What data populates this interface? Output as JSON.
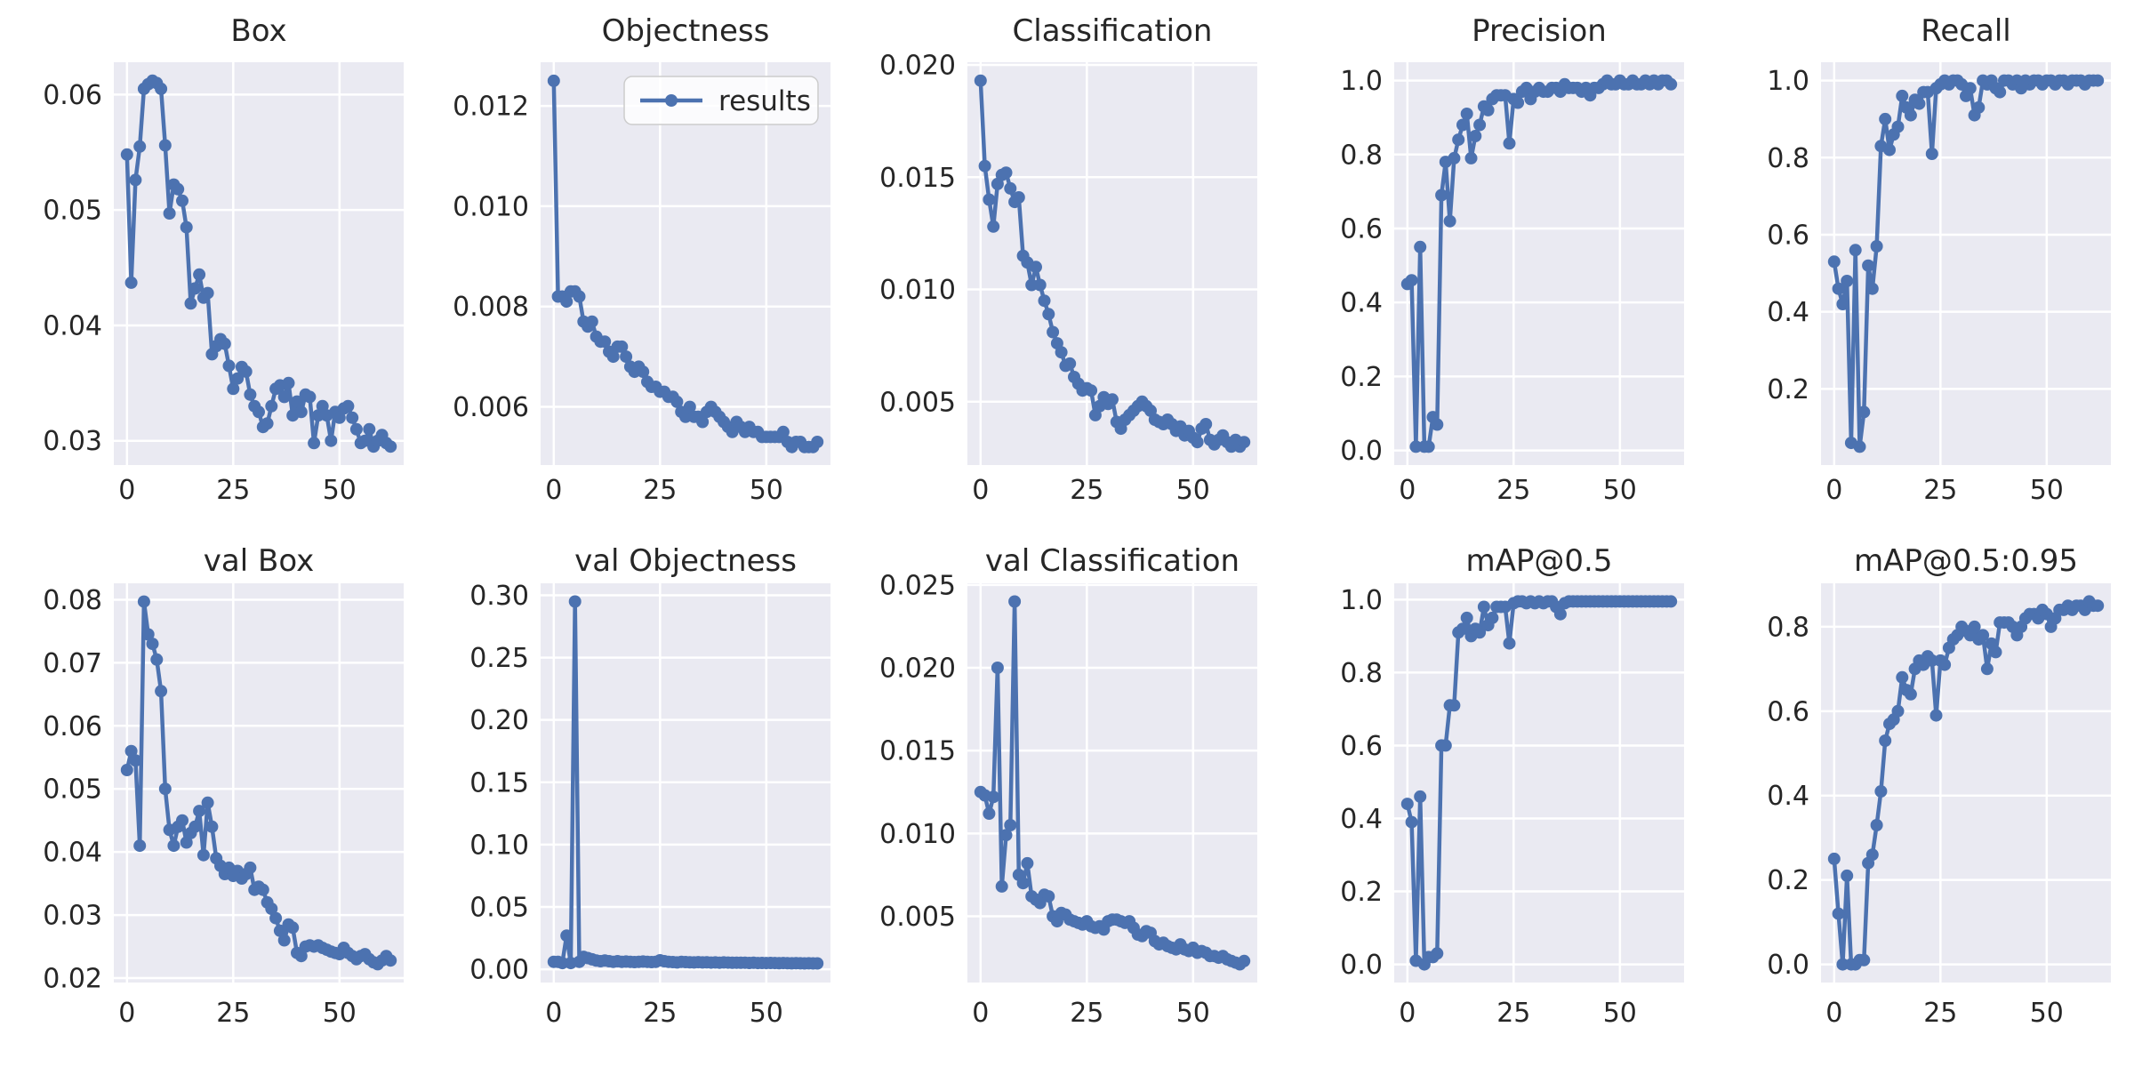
{
  "figure": {
    "description_title": "training results grid",
    "legend_label": "results"
  },
  "colors": {
    "line": "#4c72b0",
    "axes_background": "#eaeaf2",
    "gridline": "#ffffff",
    "text": "#262626",
    "legend_background": "rgba(255,255,255,0.8)",
    "legend_border": "#cccccc",
    "figure_background": "#ffffff"
  },
  "axes_shared": {
    "xlim": [
      -3.1,
      65.1
    ],
    "xticks": [
      0,
      25,
      50
    ],
    "xtick_labels": [
      "0",
      "25",
      "50"
    ],
    "x_start": 0,
    "x_step": 1,
    "grid": true,
    "legend_position": "upper right"
  },
  "chart_data": [
    {
      "type": "line",
      "title": "Box",
      "series_name": "results",
      "show_legend": false,
      "ylim": [
        0.0279,
        0.0628
      ],
      "yticks": [
        0.03,
        0.04,
        0.05,
        0.06
      ],
      "ytick_labels": [
        "0.03",
        "0.04",
        "0.05",
        "0.06"
      ],
      "values": [
        0.0548,
        0.0437,
        0.0526,
        0.0555,
        0.0605,
        0.0609,
        0.0612,
        0.061,
        0.0605,
        0.0556,
        0.0497,
        0.0522,
        0.0518,
        0.0508,
        0.0485,
        0.0419,
        0.0432,
        0.0444,
        0.0424,
        0.0428,
        0.0375,
        0.0382,
        0.0388,
        0.0384,
        0.0365,
        0.0345,
        0.0354,
        0.0364,
        0.036,
        0.034,
        0.033,
        0.0325,
        0.0312,
        0.0315,
        0.033,
        0.0345,
        0.0348,
        0.0338,
        0.035,
        0.0322,
        0.0334,
        0.0325,
        0.034,
        0.0338,
        0.0298,
        0.0322,
        0.033,
        0.0322,
        0.03,
        0.0325,
        0.032,
        0.0328,
        0.033,
        0.032,
        0.031,
        0.0298,
        0.03,
        0.031,
        0.0295,
        0.03,
        0.0305,
        0.0298,
        0.0295
      ]
    },
    {
      "type": "line",
      "title": "Objectness",
      "series_name": "results",
      "show_legend": true,
      "ylim": [
        0.00484,
        0.01287
      ],
      "yticks": [
        0.006,
        0.008,
        0.01,
        0.012
      ],
      "ytick_labels": [
        "0.006",
        "0.008",
        "0.010",
        "0.012"
      ],
      "values": [
        0.0125,
        0.0082,
        0.0082,
        0.0081,
        0.0083,
        0.0083,
        0.0082,
        0.0077,
        0.0076,
        0.0077,
        0.0074,
        0.0073,
        0.0073,
        0.0071,
        0.007,
        0.0072,
        0.0072,
        0.007,
        0.0068,
        0.0067,
        0.0068,
        0.0067,
        0.0065,
        0.0064,
        0.0064,
        0.0063,
        0.0063,
        0.0062,
        0.0062,
        0.0061,
        0.0059,
        0.0058,
        0.006,
        0.0058,
        0.0058,
        0.0057,
        0.0059,
        0.006,
        0.0059,
        0.0058,
        0.0057,
        0.0056,
        0.0055,
        0.0057,
        0.0056,
        0.0055,
        0.0056,
        0.0055,
        0.0055,
        0.0054,
        0.0054,
        0.0054,
        0.0054,
        0.0054,
        0.0055,
        0.0053,
        0.0052,
        0.0053,
        0.0053,
        0.0052,
        0.0052,
        0.0052,
        0.0053
      ]
    },
    {
      "type": "line",
      "title": "Classification",
      "series_name": "results",
      "show_legend": false,
      "ylim": [
        0.00218,
        0.02012
      ],
      "yticks": [
        0.005,
        0.01,
        0.015,
        0.02
      ],
      "ytick_labels": [
        "0.005",
        "0.010",
        "0.015",
        "0.020"
      ],
      "values": [
        0.0193,
        0.0155,
        0.014,
        0.0128,
        0.0147,
        0.0151,
        0.0152,
        0.0145,
        0.0139,
        0.0141,
        0.0115,
        0.0112,
        0.0102,
        0.011,
        0.0102,
        0.0095,
        0.0089,
        0.0081,
        0.0076,
        0.0072,
        0.0066,
        0.0067,
        0.0061,
        0.0058,
        0.0055,
        0.0056,
        0.0055,
        0.0044,
        0.0048,
        0.0052,
        0.0049,
        0.0051,
        0.0041,
        0.0038,
        0.0042,
        0.0044,
        0.0046,
        0.0048,
        0.005,
        0.0048,
        0.0046,
        0.0042,
        0.0041,
        0.004,
        0.0042,
        0.004,
        0.0037,
        0.0039,
        0.0035,
        0.0037,
        0.0034,
        0.0032,
        0.0038,
        0.004,
        0.0033,
        0.0031,
        0.0033,
        0.0035,
        0.0032,
        0.003,
        0.0033,
        0.003,
        0.0032
      ]
    },
    {
      "type": "line",
      "title": "Precision",
      "series_name": "results",
      "show_legend": false,
      "ylim": [
        -0.0395,
        1.0495
      ],
      "yticks": [
        0.0,
        0.2,
        0.4,
        0.6,
        0.8,
        1.0
      ],
      "ytick_labels": [
        "0.0",
        "0.2",
        "0.4",
        "0.6",
        "0.8",
        "1.0"
      ],
      "values": [
        0.45,
        0.46,
        0.01,
        0.55,
        0.01,
        0.01,
        0.09,
        0.07,
        0.69,
        0.78,
        0.62,
        0.79,
        0.84,
        0.88,
        0.91,
        0.79,
        0.85,
        0.88,
        0.93,
        0.92,
        0.95,
        0.96,
        0.96,
        0.96,
        0.83,
        0.95,
        0.94,
        0.97,
        0.98,
        0.95,
        0.97,
        0.98,
        0.97,
        0.97,
        0.98,
        0.98,
        0.97,
        0.99,
        0.98,
        0.98,
        0.98,
        0.97,
        0.98,
        0.96,
        0.98,
        0.98,
        0.99,
        1.0,
        0.99,
        0.99,
        1.0,
        0.99,
        0.99,
        1.0,
        0.99,
        0.99,
        1.0,
        0.99,
        1.0,
        0.99,
        1.0,
        1.0,
        0.99
      ]
    },
    {
      "type": "line",
      "title": "Recall",
      "series_name": "results",
      "show_legend": false,
      "ylim": [
        0.0025,
        1.0475
      ],
      "yticks": [
        0.2,
        0.4,
        0.6,
        0.8,
        1.0
      ],
      "ytick_labels": [
        "0.2",
        "0.4",
        "0.6",
        "0.8",
        "1.0"
      ],
      "values": [
        0.53,
        0.46,
        0.42,
        0.48,
        0.06,
        0.56,
        0.05,
        0.14,
        0.52,
        0.46,
        0.57,
        0.83,
        0.9,
        0.82,
        0.86,
        0.88,
        0.96,
        0.93,
        0.91,
        0.95,
        0.94,
        0.97,
        0.97,
        0.81,
        0.98,
        0.99,
        1.0,
        0.99,
        1.0,
        1.0,
        0.99,
        0.96,
        0.98,
        0.91,
        0.93,
        1.0,
        0.99,
        1.0,
        0.98,
        0.97,
        1.0,
        1.0,
        0.99,
        1.0,
        0.98,
        1.0,
        0.99,
        1.0,
        1.0,
        0.99,
        1.0,
        1.0,
        0.99,
        1.0,
        1.0,
        0.99,
        1.0,
        1.0,
        1.0,
        0.99,
        1.0,
        1.0,
        1.0
      ]
    },
    {
      "type": "line",
      "title": "val Box",
      "series_name": "results",
      "show_legend": false,
      "ylim": [
        0.0193,
        0.0826
      ],
      "yticks": [
        0.02,
        0.03,
        0.04,
        0.05,
        0.06,
        0.07,
        0.08
      ],
      "ytick_labels": [
        "0.02",
        "0.03",
        "0.04",
        "0.05",
        "0.06",
        "0.07",
        "0.08"
      ],
      "values": [
        0.053,
        0.056,
        0.0545,
        0.041,
        0.0797,
        0.0745,
        0.073,
        0.0705,
        0.0655,
        0.05,
        0.0435,
        0.041,
        0.044,
        0.045,
        0.0415,
        0.043,
        0.044,
        0.0465,
        0.0395,
        0.0478,
        0.044,
        0.039,
        0.0378,
        0.0365,
        0.0375,
        0.0362,
        0.037,
        0.0358,
        0.0365,
        0.0375,
        0.034,
        0.0345,
        0.034,
        0.032,
        0.031,
        0.0295,
        0.0275,
        0.026,
        0.0285,
        0.028,
        0.024,
        0.0235,
        0.025,
        0.0252,
        0.025,
        0.0252,
        0.0248,
        0.0245,
        0.0242,
        0.024,
        0.0238,
        0.0248,
        0.024,
        0.0235,
        0.023,
        0.0235,
        0.0238,
        0.023,
        0.0225,
        0.0222,
        0.0228,
        0.0235,
        0.0228
      ]
    },
    {
      "type": "line",
      "title": "val Objectness",
      "series_name": "results",
      "show_legend": false,
      "ylim": [
        -0.0106,
        0.3096
      ],
      "yticks": [
        0.0,
        0.05,
        0.1,
        0.15,
        0.2,
        0.25,
        0.3
      ],
      "ytick_labels": [
        "0.00",
        "0.05",
        "0.10",
        "0.15",
        "0.20",
        "0.25",
        "0.30"
      ],
      "values": [
        0.006,
        0.006,
        0.005,
        0.027,
        0.005,
        0.295,
        0.006,
        0.01,
        0.009,
        0.008,
        0.007,
        0.0065,
        0.007,
        0.0065,
        0.006,
        0.0065,
        0.006,
        0.0062,
        0.006,
        0.0058,
        0.006,
        0.0062,
        0.006,
        0.0058,
        0.006,
        0.0072,
        0.0065,
        0.006,
        0.0058,
        0.0055,
        0.006,
        0.0058,
        0.0056,
        0.0055,
        0.0057,
        0.0055,
        0.0056,
        0.0054,
        0.0055,
        0.0053,
        0.0055,
        0.0054,
        0.0052,
        0.0053,
        0.0052,
        0.0053,
        0.0051,
        0.0052,
        0.005,
        0.0051,
        0.005,
        0.0051,
        0.005,
        0.0049,
        0.005,
        0.0049,
        0.0048,
        0.0049,
        0.0048,
        0.0047,
        0.0048,
        0.0047,
        0.0047
      ]
    },
    {
      "type": "line",
      "title": "val Classification",
      "series_name": "results",
      "show_legend": false,
      "ylim": [
        0.001,
        0.0251
      ],
      "yticks": [
        0.005,
        0.01,
        0.015,
        0.02,
        0.025
      ],
      "ytick_labels": [
        "0.005",
        "0.010",
        "0.015",
        "0.020",
        "0.025"
      ],
      "values": [
        0.0125,
        0.0123,
        0.0112,
        0.0122,
        0.02,
        0.0068,
        0.0099,
        0.0105,
        0.024,
        0.0075,
        0.007,
        0.0082,
        0.0062,
        0.006,
        0.0058,
        0.0063,
        0.0062,
        0.005,
        0.0047,
        0.0052,
        0.0051,
        0.0048,
        0.0047,
        0.0046,
        0.0045,
        0.0047,
        0.0044,
        0.0043,
        0.0044,
        0.0042,
        0.0047,
        0.0048,
        0.0048,
        0.0047,
        0.0046,
        0.0047,
        0.0043,
        0.0039,
        0.0038,
        0.0041,
        0.004,
        0.0035,
        0.0033,
        0.0034,
        0.0032,
        0.0031,
        0.003,
        0.0033,
        0.003,
        0.0029,
        0.0031,
        0.0028,
        0.0029,
        0.0028,
        0.0026,
        0.0026,
        0.0025,
        0.0026,
        0.0024,
        0.0023,
        0.0022,
        0.0021,
        0.0023
      ]
    },
    {
      "type": "line",
      "title": "mAP@0.5",
      "series_name": "results",
      "show_legend": false,
      "ylim": [
        -0.0497,
        1.0447
      ],
      "yticks": [
        0.0,
        0.2,
        0.4,
        0.6,
        0.8,
        1.0
      ],
      "ytick_labels": [
        "0.0",
        "0.2",
        "0.4",
        "0.6",
        "0.8",
        "1.0"
      ],
      "values": [
        0.44,
        0.39,
        0.01,
        0.46,
        0.0,
        0.02,
        0.02,
        0.03,
        0.6,
        0.6,
        0.71,
        0.71,
        0.91,
        0.92,
        0.95,
        0.9,
        0.92,
        0.91,
        0.98,
        0.93,
        0.95,
        0.98,
        0.98,
        0.98,
        0.88,
        0.99,
        0.995,
        0.995,
        0.99,
        0.995,
        0.99,
        0.995,
        0.99,
        0.995,
        0.995,
        0.98,
        0.96,
        0.99,
        0.995,
        0.995,
        0.995,
        0.995,
        0.995,
        0.995,
        0.995,
        0.995,
        0.995,
        0.995,
        0.995,
        0.995,
        0.995,
        0.995,
        0.995,
        0.995,
        0.995,
        0.995,
        0.995,
        0.995,
        0.995,
        0.995,
        0.995,
        0.995,
        0.995
      ]
    },
    {
      "type": "line",
      "title": "mAP@0.5:0.95",
      "series_name": "results",
      "show_legend": false,
      "ylim": [
        -0.043,
        0.903
      ],
      "yticks": [
        0.0,
        0.2,
        0.4,
        0.6,
        0.8
      ],
      "ytick_labels": [
        "0.0",
        "0.2",
        "0.4",
        "0.6",
        "0.8"
      ],
      "values": [
        0.25,
        0.12,
        0.0,
        0.21,
        0.0,
        0.0,
        0.01,
        0.01,
        0.24,
        0.26,
        0.33,
        0.41,
        0.53,
        0.57,
        0.58,
        0.6,
        0.68,
        0.65,
        0.64,
        0.7,
        0.72,
        0.71,
        0.73,
        0.72,
        0.59,
        0.72,
        0.71,
        0.75,
        0.77,
        0.78,
        0.8,
        0.79,
        0.78,
        0.8,
        0.77,
        0.78,
        0.7,
        0.76,
        0.74,
        0.81,
        0.81,
        0.81,
        0.8,
        0.78,
        0.8,
        0.82,
        0.83,
        0.83,
        0.82,
        0.84,
        0.83,
        0.8,
        0.82,
        0.84,
        0.84,
        0.85,
        0.84,
        0.85,
        0.85,
        0.84,
        0.86,
        0.85,
        0.85
      ]
    }
  ]
}
